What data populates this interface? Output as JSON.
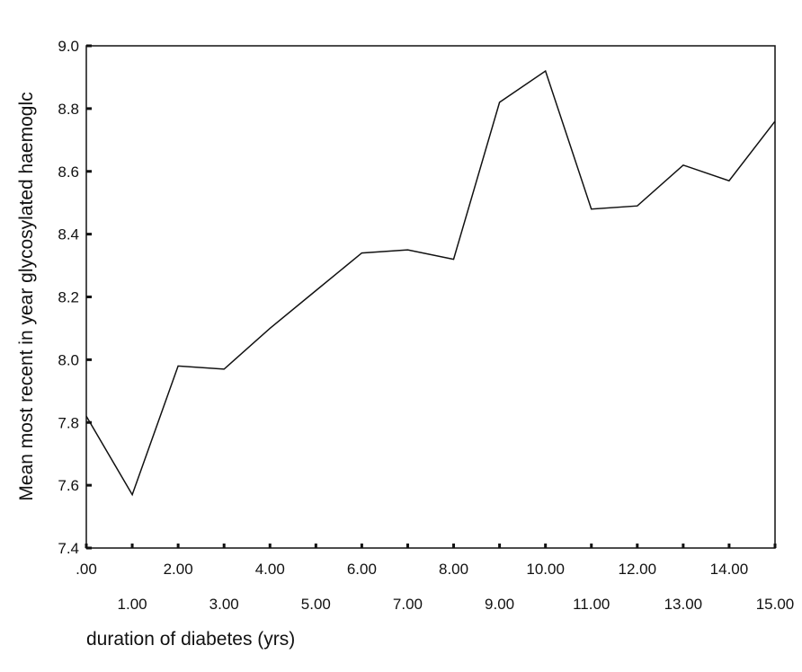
{
  "chart_data": {
    "type": "line",
    "title": "",
    "xlabel": "duration of diabetes (yrs)",
    "ylabel": "Mean most recent in year glycosylated haemoglc",
    "x": [
      0,
      1,
      2,
      3,
      4,
      5,
      6,
      7,
      8,
      9,
      10,
      11,
      12,
      13,
      14,
      15
    ],
    "xtick_labels": [
      ".00",
      "1.00",
      "2.00",
      "3.00",
      "4.00",
      "5.00",
      "6.00",
      "7.00",
      "8.00",
      "9.00",
      "10.00",
      "11.00",
      "12.00",
      "13.00",
      "14.00",
      "15.00"
    ],
    "series": [
      {
        "values": [
          7.82,
          7.57,
          7.98,
          7.97,
          8.1,
          8.22,
          8.34,
          8.35,
          8.32,
          8.82,
          8.92,
          8.48,
          8.49,
          8.62,
          8.57,
          8.76
        ]
      }
    ],
    "xlim": [
      0,
      15
    ],
    "ylim": [
      7.4,
      9.0
    ],
    "yticks": [
      7.4,
      7.6,
      7.8,
      8.0,
      8.2,
      8.4,
      8.6,
      8.8,
      9.0
    ],
    "ytick_labels": [
      "7.4",
      "7.6",
      "7.8",
      "8.0",
      "8.2",
      "8.4",
      "8.6",
      "8.8",
      "9.0"
    ],
    "grid": false,
    "line_color": "#111111"
  }
}
